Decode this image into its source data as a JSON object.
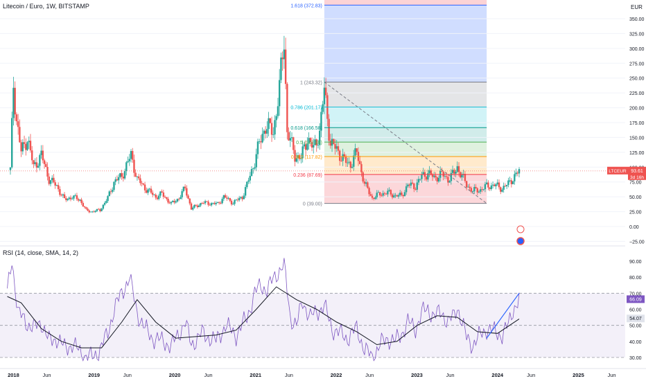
{
  "header": {
    "symbol_line": "Litecoin / Euro, 1W, BITSTAMP",
    "rsi_line": "RSI (14, close, SMA, 14, 2)"
  },
  "price_axis": {
    "currency": "EUR",
    "ticks": [
      "350.00",
      "325.00",
      "300.00",
      "275.00",
      "250.00",
      "225.00",
      "200.00",
      "175.00",
      "150.00",
      "125.00",
      "100.00",
      "75.00",
      "50.00",
      "25.00",
      "0.00",
      "−25.00"
    ]
  },
  "price_label": {
    "symbol": "LTCEUR",
    "price": "93.61",
    "countdown": "3d 16h"
  },
  "rsi_axis": {
    "ticks": [
      "90.00",
      "80.00",
      "70.00",
      "60.00",
      "50.00",
      "40.00",
      "30.00"
    ]
  },
  "rsi_label": {
    "rsi": "66.09",
    "sma": "54.07"
  },
  "time_axis": [
    "2018",
    "Jun",
    "2019",
    "Jun",
    "2020",
    "Jun",
    "2021",
    "Jun",
    "2022",
    "Jun",
    "2023",
    "Jun",
    "2024",
    "Jun",
    "2025",
    "Jun"
  ],
  "fib_labels": [
    {
      "text": "1.618 (372.83)",
      "price": 372.83
    },
    {
      "text": "1 (243.32)",
      "price": 243.32
    },
    {
      "text": "0.786 (201.17)",
      "price": 201.17
    },
    {
      "text": "0.618 (166.58)",
      "price": 166.58
    },
    {
      "text": "0.5 (142.16)",
      "price": 142.16
    },
    {
      "text": "0.382 (117.82)",
      "price": 117.82
    },
    {
      "text": "0.236 (87.69)",
      "price": 87.69
    },
    {
      "text": "0 (39.00)",
      "price": 39.0
    }
  ],
  "colors": {
    "up": "#26a69a",
    "down": "#ef5350",
    "rsi": "#7e57c2",
    "sma": "#131722",
    "trend": "#2962ff"
  },
  "chart_data": {
    "type": "candlestick",
    "x_range": [
      "2018-01-01",
      "2025-07-01"
    ],
    "price_ylim": [
      -25,
      375
    ],
    "rsi_ylim": [
      30,
      90
    ],
    "rsi_bands": [
      70,
      50,
      30
    ],
    "price_series": [
      {
        "date": "2017-12-18",
        "value": 95
      },
      {
        "date": "2018-01-01",
        "value": 240
      },
      {
        "date": "2018-01-15",
        "value": 180
      },
      {
        "date": "2018-02-05",
        "value": 125
      },
      {
        "date": "2018-03-05",
        "value": 150
      },
      {
        "date": "2018-04-02",
        "value": 100
      },
      {
        "date": "2018-05-07",
        "value": 120
      },
      {
        "date": "2018-06-11",
        "value": 80
      },
      {
        "date": "2018-07-16",
        "value": 68
      },
      {
        "date": "2018-08-20",
        "value": 45
      },
      {
        "date": "2018-09-24",
        "value": 50
      },
      {
        "date": "2018-10-29",
        "value": 45
      },
      {
        "date": "2018-11-26",
        "value": 27
      },
      {
        "date": "2018-12-24",
        "value": 25
      },
      {
        "date": "2019-01-28",
        "value": 28
      },
      {
        "date": "2019-03-04",
        "value": 48
      },
      {
        "date": "2019-04-01",
        "value": 75
      },
      {
        "date": "2019-05-06",
        "value": 85
      },
      {
        "date": "2019-06-17",
        "value": 120
      },
      {
        "date": "2019-07-15",
        "value": 80
      },
      {
        "date": "2019-08-19",
        "value": 65
      },
      {
        "date": "2019-10-07",
        "value": 50
      },
      {
        "date": "2019-11-04",
        "value": 55
      },
      {
        "date": "2019-12-16",
        "value": 38
      },
      {
        "date": "2020-01-20",
        "value": 48
      },
      {
        "date": "2020-02-17",
        "value": 65
      },
      {
        "date": "2020-03-16",
        "value": 30
      },
      {
        "date": "2020-05-04",
        "value": 40
      },
      {
        "date": "2020-07-13",
        "value": 38
      },
      {
        "date": "2020-08-10",
        "value": 50
      },
      {
        "date": "2020-09-21",
        "value": 40
      },
      {
        "date": "2020-11-02",
        "value": 50
      },
      {
        "date": "2020-11-23",
        "value": 70
      },
      {
        "date": "2020-12-28",
        "value": 110
      },
      {
        "date": "2021-01-18",
        "value": 140
      },
      {
        "date": "2021-02-15",
        "value": 170
      },
      {
        "date": "2021-03-22",
        "value": 160
      },
      {
        "date": "2021-04-19",
        "value": 230
      },
      {
        "date": "2021-05-10",
        "value": 320
      },
      {
        "date": "2021-05-24",
        "value": 160
      },
      {
        "date": "2021-06-28",
        "value": 120
      },
      {
        "date": "2021-07-26",
        "value": 115
      },
      {
        "date": "2021-08-23",
        "value": 150
      },
      {
        "date": "2021-09-20",
        "value": 130
      },
      {
        "date": "2021-10-18",
        "value": 160
      },
      {
        "date": "2021-11-08",
        "value": 230
      },
      {
        "date": "2021-12-06",
        "value": 140
      },
      {
        "date": "2022-01-03",
        "value": 130
      },
      {
        "date": "2022-02-07",
        "value": 110
      },
      {
        "date": "2022-03-07",
        "value": 105
      },
      {
        "date": "2022-04-04",
        "value": 125
      },
      {
        "date": "2022-05-09",
        "value": 72
      },
      {
        "date": "2022-06-13",
        "value": 48
      },
      {
        "date": "2022-07-18",
        "value": 55
      },
      {
        "date": "2022-08-22",
        "value": 57
      },
      {
        "date": "2022-09-26",
        "value": 52
      },
      {
        "date": "2022-10-24",
        "value": 52
      },
      {
        "date": "2022-11-21",
        "value": 70
      },
      {
        "date": "2022-12-26",
        "value": 68
      },
      {
        "date": "2023-01-23",
        "value": 85
      },
      {
        "date": "2023-02-20",
        "value": 90
      },
      {
        "date": "2023-03-20",
        "value": 82
      },
      {
        "date": "2023-04-24",
        "value": 88
      },
      {
        "date": "2023-05-22",
        "value": 80
      },
      {
        "date": "2023-06-19",
        "value": 90
      },
      {
        "date": "2023-07-03",
        "value": 100
      },
      {
        "date": "2023-08-14",
        "value": 70
      },
      {
        "date": "2023-09-11",
        "value": 60
      },
      {
        "date": "2023-10-16",
        "value": 62
      },
      {
        "date": "2023-11-13",
        "value": 68
      },
      {
        "date": "2023-12-18",
        "value": 70
      },
      {
        "date": "2024-01-22",
        "value": 64
      },
      {
        "date": "2024-02-19",
        "value": 72
      },
      {
        "date": "2024-03-11",
        "value": 82
      },
      {
        "date": "2024-04-08",
        "value": 93
      }
    ],
    "rsi_series": [
      {
        "date": "2017-12-04",
        "value": 70
      },
      {
        "date": "2017-12-25",
        "value": 91
      },
      {
        "date": "2018-01-22",
        "value": 58
      },
      {
        "date": "2018-02-26",
        "value": 52
      },
      {
        "date": "2018-04-02",
        "value": 48
      },
      {
        "date": "2018-05-07",
        "value": 52
      },
      {
        "date": "2018-06-11",
        "value": 40
      },
      {
        "date": "2018-07-16",
        "value": 42
      },
      {
        "date": "2018-08-20",
        "value": 36
      },
      {
        "date": "2018-09-24",
        "value": 38
      },
      {
        "date": "2018-11-19",
        "value": 31
      },
      {
        "date": "2018-12-24",
        "value": 30
      },
      {
        "date": "2019-01-28",
        "value": 35
      },
      {
        "date": "2019-03-04",
        "value": 45
      },
      {
        "date": "2019-04-01",
        "value": 60
      },
      {
        "date": "2019-05-06",
        "value": 70
      },
      {
        "date": "2019-06-10",
        "value": 80
      },
      {
        "date": "2019-07-15",
        "value": 58
      },
      {
        "date": "2019-08-19",
        "value": 48
      },
      {
        "date": "2019-09-23",
        "value": 42
      },
      {
        "date": "2019-11-11",
        "value": 40
      },
      {
        "date": "2019-12-16",
        "value": 37
      },
      {
        "date": "2020-01-20",
        "value": 45
      },
      {
        "date": "2020-02-17",
        "value": 52
      },
      {
        "date": "2020-03-16",
        "value": 38
      },
      {
        "date": "2020-05-04",
        "value": 45
      },
      {
        "date": "2020-07-06",
        "value": 40
      },
      {
        "date": "2020-08-17",
        "value": 50
      },
      {
        "date": "2020-10-05",
        "value": 44
      },
      {
        "date": "2020-11-23",
        "value": 55
      },
      {
        "date": "2020-12-28",
        "value": 70
      },
      {
        "date": "2021-01-25",
        "value": 75
      },
      {
        "date": "2021-02-22",
        "value": 72
      },
      {
        "date": "2021-04-05",
        "value": 82
      },
      {
        "date": "2021-05-10",
        "value": 88
      },
      {
        "date": "2021-06-07",
        "value": 55
      },
      {
        "date": "2021-07-05",
        "value": 50
      },
      {
        "date": "2021-08-02",
        "value": 65
      },
      {
        "date": "2021-09-06",
        "value": 55
      },
      {
        "date": "2021-10-18",
        "value": 60
      },
      {
        "date": "2021-11-08",
        "value": 62
      },
      {
        "date": "2021-12-13",
        "value": 48
      },
      {
        "date": "2022-01-17",
        "value": 45
      },
      {
        "date": "2022-02-21",
        "value": 42
      },
      {
        "date": "2022-04-04",
        "value": 48
      },
      {
        "date": "2022-05-09",
        "value": 35
      },
      {
        "date": "2022-06-13",
        "value": 30
      },
      {
        "date": "2022-07-18",
        "value": 38
      },
      {
        "date": "2022-08-22",
        "value": 42
      },
      {
        "date": "2022-09-26",
        "value": 40
      },
      {
        "date": "2022-10-24",
        "value": 45
      },
      {
        "date": "2022-11-21",
        "value": 52
      },
      {
        "date": "2022-12-26",
        "value": 48
      },
      {
        "date": "2023-01-23",
        "value": 58
      },
      {
        "date": "2023-02-20",
        "value": 60
      },
      {
        "date": "2023-03-20",
        "value": 56
      },
      {
        "date": "2023-04-24",
        "value": 58
      },
      {
        "date": "2023-05-22",
        "value": 52
      },
      {
        "date": "2023-06-19",
        "value": 56
      },
      {
        "date": "2023-07-03",
        "value": 62
      },
      {
        "date": "2023-08-14",
        "value": 42
      },
      {
        "date": "2023-09-11",
        "value": 38
      },
      {
        "date": "2023-10-16",
        "value": 44
      },
      {
        "date": "2023-11-13",
        "value": 48
      },
      {
        "date": "2023-12-18",
        "value": 46
      },
      {
        "date": "2024-01-22",
        "value": 44
      },
      {
        "date": "2024-02-19",
        "value": 50
      },
      {
        "date": "2024-03-11",
        "value": 60
      },
      {
        "date": "2024-04-08",
        "value": 66
      }
    ],
    "rsi_sma_series": [
      {
        "date": "2017-12-04",
        "value": 68
      },
      {
        "date": "2018-02-05",
        "value": 64
      },
      {
        "date": "2018-05-07",
        "value": 48
      },
      {
        "date": "2018-08-06",
        "value": 40
      },
      {
        "date": "2018-11-05",
        "value": 36
      },
      {
        "date": "2019-02-04",
        "value": 36
      },
      {
        "date": "2019-05-06",
        "value": 52
      },
      {
        "date": "2019-07-15",
        "value": 66
      },
      {
        "date": "2019-10-07",
        "value": 52
      },
      {
        "date": "2020-01-06",
        "value": 42
      },
      {
        "date": "2020-04-06",
        "value": 43
      },
      {
        "date": "2020-07-06",
        "value": 44
      },
      {
        "date": "2020-10-05",
        "value": 47
      },
      {
        "date": "2021-01-04",
        "value": 60
      },
      {
        "date": "2021-04-05",
        "value": 74
      },
      {
        "date": "2021-07-05",
        "value": 66
      },
      {
        "date": "2021-10-04",
        "value": 60
      },
      {
        "date": "2022-01-03",
        "value": 52
      },
      {
        "date": "2022-04-04",
        "value": 46
      },
      {
        "date": "2022-07-04",
        "value": 38
      },
      {
        "date": "2022-10-03",
        "value": 40
      },
      {
        "date": "2023-01-02",
        "value": 50
      },
      {
        "date": "2023-04-03",
        "value": 56
      },
      {
        "date": "2023-07-03",
        "value": 55
      },
      {
        "date": "2023-10-02",
        "value": 46
      },
      {
        "date": "2024-01-01",
        "value": 45
      },
      {
        "date": "2024-04-08",
        "value": 54
      }
    ],
    "fib_retracement": {
      "from": {
        "date": "2021-11-08",
        "price": 243.32
      },
      "to": {
        "date": "2023-11-13",
        "price": 39.0
      },
      "levels": [
        {
          "ratio": 1.618,
          "price": 372.83
        },
        {
          "ratio": 1,
          "price": 243.32
        },
        {
          "ratio": 0.786,
          "price": 201.17
        },
        {
          "ratio": 0.618,
          "price": 166.58
        },
        {
          "ratio": 0.5,
          "price": 142.16
        },
        {
          "ratio": 0.382,
          "price": 117.82
        },
        {
          "ratio": 0.236,
          "price": 87.69
        },
        {
          "ratio": 0,
          "price": 39.0
        }
      ]
    },
    "rsi_trendline": {
      "from": {
        "date": "2023-11-13",
        "value": 42
      },
      "to": {
        "date": "2024-04-08",
        "value": 70
      }
    },
    "last_price": 93.61
  }
}
